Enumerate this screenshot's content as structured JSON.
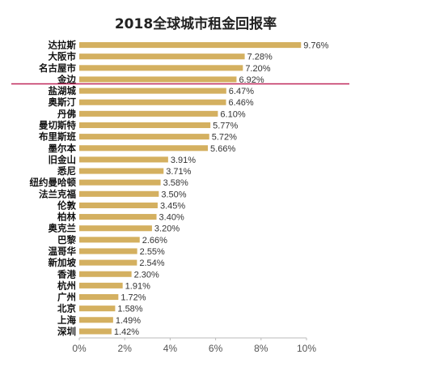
{
  "chart_data": {
    "type": "bar",
    "orientation": "horizontal",
    "title": "2018全球城市租金回报率",
    "categories": [
      "达拉斯",
      "大阪市",
      "名古屋市",
      "金边",
      "盐湖城",
      "奥斯汀",
      "丹佛",
      "曼切斯特",
      "布里斯班",
      "墨尔本",
      "旧金山",
      "悉尼",
      "纽约曼哈顿",
      "法兰克福",
      "伦敦",
      "柏林",
      "奥克兰",
      "巴黎",
      "温哥华",
      "新加坡",
      "香港",
      "杭州",
      "广州",
      "北京",
      "上海",
      "深圳"
    ],
    "values": [
      9.76,
      7.28,
      7.2,
      6.92,
      6.47,
      6.46,
      6.1,
      5.77,
      5.72,
      5.66,
      3.91,
      3.71,
      3.58,
      3.5,
      3.45,
      3.4,
      3.2,
      2.66,
      2.55,
      2.54,
      2.3,
      1.91,
      1.72,
      1.58,
      1.49,
      1.42
    ],
    "value_labels": [
      "9.76%",
      "7.28%",
      "7.20%",
      "6.92%",
      "6.47%",
      "6.46%",
      "6.10%",
      "5.77%",
      "5.72%",
      "5.66%",
      "3.91%",
      "3.71%",
      "3.58%",
      "3.50%",
      "3.45%",
      "3.40%",
      "3.20%",
      "2.66%",
      "2.55%",
      "2.54%",
      "2.30%",
      "1.91%",
      "1.72%",
      "1.58%",
      "1.49%",
      "1.42%"
    ],
    "x_ticks": [
      "0%",
      "2%",
      "4%",
      "6%",
      "8%",
      "10%"
    ],
    "xlim": [
      0,
      10
    ],
    "grid": false,
    "bar_color": "#d4b060",
    "divider_after_category": "金边",
    "divider_color": "#c0285a"
  }
}
